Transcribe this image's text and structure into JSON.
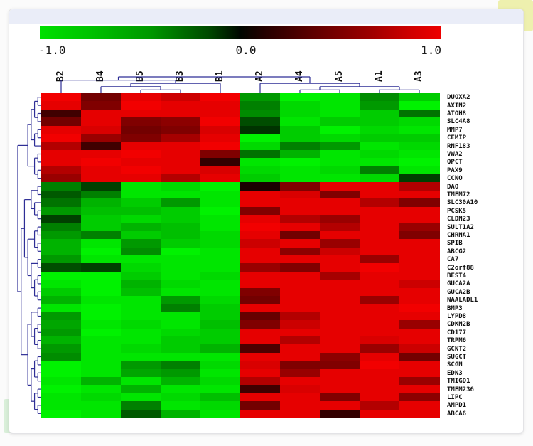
{
  "page": {
    "decor": {
      "yellow_block": "#eef0ae",
      "green_block": "#d9efd9",
      "card_strip": "#eaedf8",
      "card_bg": "#ffffff"
    }
  },
  "chart_data": {
    "type": "heatmap",
    "title": "",
    "legend_position": "top",
    "colorbar": {
      "ticks": [
        "-1.0",
        "0.0",
        "1.0"
      ],
      "min": -1.0,
      "max": 1.0,
      "colors": [
        "#00e000",
        "#000000",
        "#ee0000"
      ]
    },
    "columns": [
      "B2",
      "B4",
      "B5",
      "B3",
      "B1",
      "A2",
      "A4",
      "A5",
      "A1",
      "A3"
    ],
    "rows": [
      "DUOXA2",
      "AXIN2",
      "ATOH8",
      "SLC4A8",
      "MMP7",
      "CEMIP",
      "RNF183",
      "VWA2",
      "QPCT",
      "PAX9",
      "CCNO",
      "DAO",
      "TMEM72",
      "SLC30A10",
      "PCSK5",
      "CLDN23",
      "SULT1A2",
      "CHRNA1",
      "SPIB",
      "ABCG2",
      "CA7",
      "C2orf88",
      "BEST4",
      "GUCA2A",
      "GUCA2B",
      "NAALADL1",
      "BMP3",
      "LYPD8",
      "CDKN2B",
      "CD177",
      "TRPM6",
      "GCNT2",
      "SUGCT",
      "SCGN",
      "EDN3",
      "TMIGD1",
      "TMEM236",
      "LIPC",
      "AMPD1",
      "ABCA6"
    ],
    "values": [
      [
        0.95,
        0.45,
        0.9,
        0.8,
        0.95,
        -0.6,
        -0.95,
        -0.9,
        -0.55,
        -0.8
      ],
      [
        0.9,
        0.5,
        0.95,
        0.9,
        0.9,
        -0.5,
        -0.85,
        -0.9,
        -0.6,
        -0.95
      ],
      [
        0.25,
        0.9,
        0.9,
        0.9,
        0.9,
        -0.55,
        -0.85,
        -0.9,
        -0.8,
        -0.45
      ],
      [
        0.45,
        0.9,
        0.5,
        0.55,
        0.95,
        -0.3,
        -0.9,
        -0.8,
        -0.8,
        -0.85
      ],
      [
        0.9,
        0.85,
        0.45,
        0.5,
        0.85,
        -0.2,
        -0.8,
        -0.95,
        -0.85,
        -0.9
      ],
      [
        0.95,
        0.6,
        0.5,
        0.65,
        0.9,
        -0.95,
        -0.8,
        -0.85,
        -0.8,
        -0.8
      ],
      [
        0.7,
        0.25,
        0.9,
        0.9,
        0.95,
        -0.85,
        -0.5,
        -0.6,
        -0.9,
        -0.85
      ],
      [
        0.9,
        0.9,
        0.95,
        0.9,
        0.5,
        -0.45,
        -0.7,
        -0.9,
        -0.85,
        -0.9
      ],
      [
        0.9,
        0.95,
        0.9,
        0.9,
        0.2,
        -0.9,
        -0.95,
        -0.9,
        -0.9,
        -0.95
      ],
      [
        0.7,
        0.9,
        0.95,
        0.9,
        0.85,
        -0.85,
        -0.9,
        -0.85,
        -0.5,
        -0.9
      ],
      [
        0.6,
        0.9,
        0.9,
        0.7,
        0.9,
        -0.8,
        -0.9,
        -0.9,
        -0.85,
        -0.25
      ],
      [
        -0.5,
        -0.25,
        -0.9,
        -0.85,
        -0.95,
        0.1,
        0.5,
        0.9,
        0.9,
        0.7
      ],
      [
        -0.35,
        -0.5,
        -0.9,
        -0.9,
        -0.9,
        0.9,
        0.85,
        0.5,
        0.9,
        0.9
      ],
      [
        -0.45,
        -0.7,
        -0.8,
        -0.6,
        -0.9,
        0.9,
        0.9,
        0.9,
        0.7,
        0.5
      ],
      [
        -0.6,
        -0.75,
        -0.75,
        -0.8,
        -0.95,
        0.5,
        0.9,
        0.9,
        0.9,
        0.9
      ],
      [
        -0.25,
        -0.8,
        -0.85,
        -0.8,
        -0.9,
        0.9,
        0.7,
        0.6,
        0.9,
        0.9
      ],
      [
        -0.5,
        -0.8,
        -0.7,
        -0.75,
        -0.9,
        0.95,
        0.9,
        0.7,
        0.9,
        0.6
      ],
      [
        -0.6,
        -0.5,
        -0.8,
        -0.75,
        -0.85,
        0.9,
        0.45,
        0.9,
        0.9,
        0.5
      ],
      [
        -0.7,
        -0.9,
        -0.6,
        -0.8,
        -0.85,
        0.8,
        0.9,
        0.6,
        0.9,
        0.9
      ],
      [
        -0.7,
        -0.95,
        -0.55,
        -0.95,
        -0.9,
        0.9,
        0.55,
        0.8,
        0.9,
        0.9
      ],
      [
        -0.6,
        -0.9,
        -0.9,
        -0.9,
        -0.9,
        0.9,
        0.9,
        0.9,
        0.6,
        0.9
      ],
      [
        -0.3,
        -0.25,
        -0.85,
        -0.9,
        -0.9,
        0.6,
        0.5,
        0.9,
        0.95,
        0.9
      ],
      [
        -0.95,
        -0.95,
        -0.8,
        -0.9,
        -0.85,
        0.9,
        0.9,
        0.65,
        0.9,
        0.9
      ],
      [
        -0.9,
        -0.95,
        -0.7,
        -0.85,
        -0.9,
        0.9,
        0.9,
        0.9,
        0.9,
        0.8
      ],
      [
        -0.8,
        -0.95,
        -0.75,
        -0.9,
        -0.9,
        0.5,
        0.9,
        0.9,
        0.9,
        0.9
      ],
      [
        -0.7,
        -0.9,
        -0.9,
        -0.6,
        -0.85,
        0.45,
        0.9,
        0.9,
        0.6,
        0.9
      ],
      [
        -0.9,
        -0.95,
        -0.9,
        -0.5,
        -0.8,
        0.9,
        0.9,
        0.9,
        0.9,
        0.95
      ],
      [
        -0.6,
        -0.95,
        -0.9,
        -0.9,
        -0.8,
        0.4,
        0.7,
        0.9,
        0.9,
        0.9
      ],
      [
        -0.65,
        -0.9,
        -0.85,
        -0.9,
        -0.75,
        0.5,
        0.8,
        0.9,
        0.9,
        0.6
      ],
      [
        -0.6,
        -0.95,
        -0.9,
        -0.85,
        -0.8,
        0.9,
        0.9,
        0.9,
        0.9,
        0.9
      ],
      [
        -0.7,
        -0.9,
        -0.9,
        -0.8,
        -0.8,
        0.9,
        0.7,
        0.9,
        0.85,
        0.9
      ],
      [
        -0.6,
        -0.9,
        -0.85,
        -0.8,
        -0.7,
        0.3,
        0.9,
        0.9,
        0.6,
        0.8
      ],
      [
        -0.55,
        -0.9,
        -0.9,
        -0.9,
        -0.9,
        0.9,
        0.9,
        0.55,
        0.9,
        0.45
      ],
      [
        -0.95,
        -0.9,
        -0.6,
        -0.5,
        -0.85,
        0.85,
        0.5,
        0.5,
        0.95,
        0.9
      ],
      [
        -0.95,
        -0.9,
        -0.65,
        -0.6,
        -0.9,
        0.9,
        0.6,
        0.9,
        0.9,
        0.9
      ],
      [
        -0.9,
        -0.7,
        -0.9,
        -0.7,
        -0.85,
        0.7,
        0.9,
        0.9,
        0.9,
        0.6
      ],
      [
        -0.95,
        -0.9,
        -0.7,
        -0.9,
        -0.9,
        0.25,
        0.85,
        0.9,
        0.9,
        0.9
      ],
      [
        -0.9,
        -0.85,
        -0.9,
        -0.85,
        -0.75,
        0.9,
        0.9,
        0.5,
        0.9,
        0.55
      ],
      [
        -0.9,
        -0.9,
        -0.5,
        -0.9,
        -0.85,
        0.45,
        0.9,
        0.9,
        0.7,
        0.9
      ],
      [
        -0.95,
        -0.9,
        -0.35,
        -0.7,
        -0.9,
        0.9,
        0.9,
        0.2,
        0.9,
        0.9
      ]
    ],
    "column_tree": [
      [
        0,
        [
          [
            1,
            [
              2,
              3
            ]
          ],
          4
        ]
      ],
      [
        5,
        [
          [
            6,
            7
          ],
          [
            8,
            9
          ]
        ]
      ]
    ],
    "row_tree": [
      [
        [
          [
            [
              0,
              1
            ],
            [
              2,
              3
            ]
          ],
          [
            [
              4,
              5
            ],
            6
          ]
        ],
        [
          [
            7,
            8
          ],
          [
            9,
            10
          ]
        ]
      ],
      [
        [
          [
            [
              11,
              12
            ],
            [
              13,
              [
                14,
                15
              ]
            ]
          ],
          [
            [
              [
                16,
                17
              ],
              [
                18,
                19
              ]
            ],
            [
              [
                20,
                21
              ],
              [
                [
                  22,
                  23
                ],
                [
                  24,
                  25
                ]
              ]
            ]
          ]
        ],
        [
          [
            [
              26,
              27
            ],
            [
              [
                28,
                29
              ],
              [
                30,
                31
              ]
            ]
          ],
          [
            [
              [
                32,
                33
              ],
              [
                34,
                35
              ]
            ],
            [
              [
                36,
                37
              ],
              [
                38,
                39
              ]
            ]
          ]
        ]
      ]
    ],
    "dendrogram_color": "#2e2e96"
  }
}
